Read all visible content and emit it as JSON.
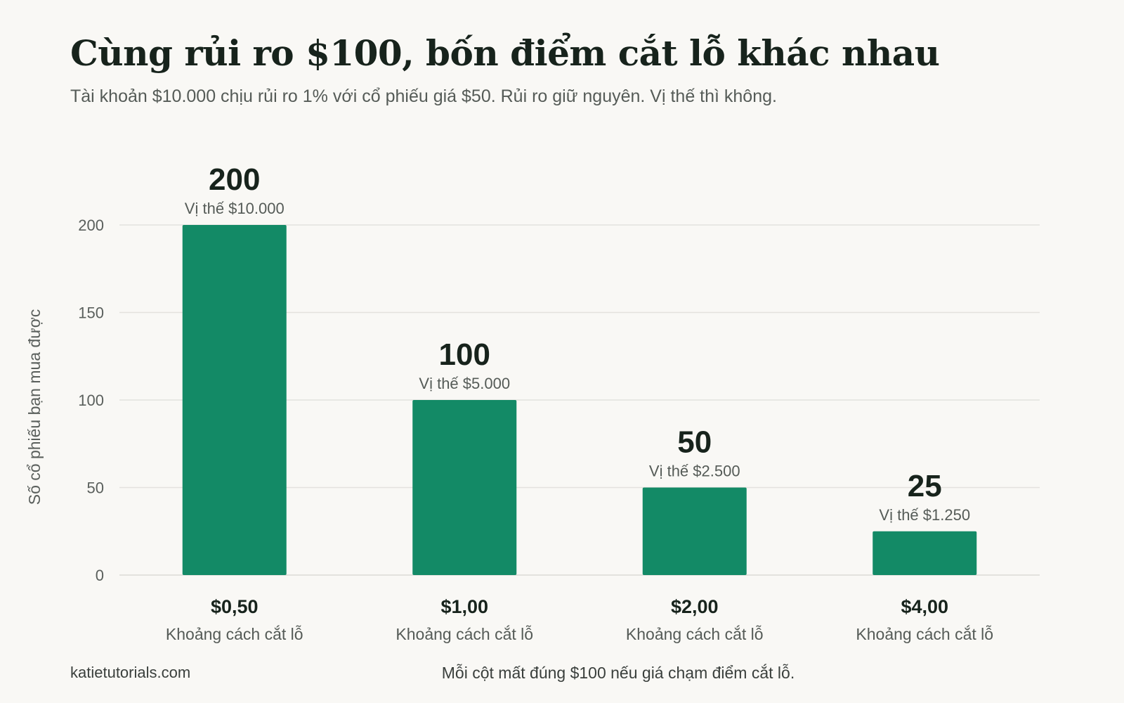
{
  "header": {
    "title": "Cùng rủi ro $100, bốn điểm cắt lỗ khác nhau",
    "subtitle": "Tài khoản $10.000 chịu rủi ro 1% với cổ phiếu giá $50. Rủi ro giữ nguyên. Vị thế thì không."
  },
  "footer": {
    "source": "katietutorials.com",
    "note": "Mỗi cột mất đúng $100 nếu giá chạm điểm cắt lỗ."
  },
  "colors": {
    "bar": "#138a66",
    "grid": "#e3e2de",
    "axis_text": "#5a5f5c",
    "value_text": "#17231c",
    "sublabel_text": "#555b57"
  },
  "chart_data": {
    "type": "bar",
    "ylabel": "Số cổ phiếu bạn mua được",
    "ylim": [
      0,
      200
    ],
    "yticks": [
      0,
      50,
      100,
      150,
      200
    ],
    "yticks_labels": [
      "0",
      "50",
      "100",
      "150",
      "200"
    ],
    "grid": true,
    "legend": "none",
    "categories": [
      "$0,50",
      "$1,00",
      "$2,00",
      "$4,00"
    ],
    "category_sublabel": "Khoảng cách cắt lỗ",
    "values": [
      200,
      100,
      50,
      25
    ],
    "value_labels": [
      "200",
      "100",
      "50",
      "25"
    ],
    "annotations": [
      "Vị thế $10.000",
      "Vị thế $5.000",
      "Vị thế $2.500",
      "Vị thế $1.250"
    ]
  }
}
